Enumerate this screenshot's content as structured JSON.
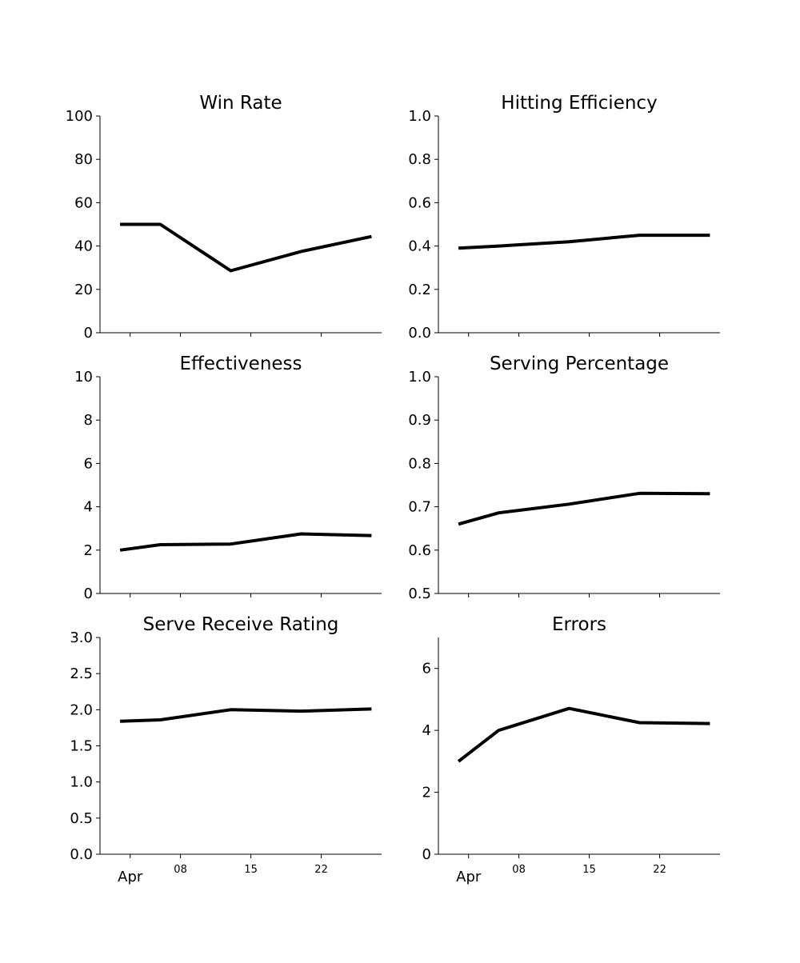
{
  "chart_data": [
    {
      "type": "line",
      "title": "Win Rate",
      "x": [
        "2023-04-02",
        "2023-04-06",
        "2023-04-13",
        "2023-04-20",
        "2023-04-27"
      ],
      "series": [
        {
          "values": [
            50,
            50,
            28.6,
            37.5,
            44.4
          ]
        }
      ],
      "ylim": [
        0,
        100
      ],
      "yticks": [
        "0",
        "20",
        "40",
        "60",
        "80",
        "100"
      ],
      "grid": false
    },
    {
      "type": "line",
      "title": "Hitting Efficiency",
      "x": [
        "2023-04-02",
        "2023-04-06",
        "2023-04-13",
        "2023-04-20",
        "2023-04-27"
      ],
      "series": [
        {
          "values": [
            0.39,
            0.4,
            0.42,
            0.45,
            0.45
          ]
        }
      ],
      "ylim": [
        0,
        1
      ],
      "yticks": [
        "0.0",
        "0.2",
        "0.4",
        "0.6",
        "0.8",
        "1.0"
      ],
      "grid": false
    },
    {
      "type": "line",
      "title": "Effectiveness",
      "x": [
        "2023-04-02",
        "2023-04-06",
        "2023-04-13",
        "2023-04-20",
        "2023-04-27"
      ],
      "series": [
        {
          "values": [
            2.0,
            2.25,
            2.28,
            2.75,
            2.67
          ]
        }
      ],
      "ylim": [
        0,
        10
      ],
      "yticks": [
        "0",
        "2",
        "4",
        "6",
        "8",
        "10"
      ],
      "grid": false
    },
    {
      "type": "line",
      "title": "Serving Percentage",
      "x": [
        "2023-04-02",
        "2023-04-06",
        "2023-04-13",
        "2023-04-20",
        "2023-04-27"
      ],
      "series": [
        {
          "values": [
            0.66,
            0.686,
            0.706,
            0.731,
            0.73
          ]
        }
      ],
      "ylim": [
        0.5,
        1.0
      ],
      "yticks": [
        "0.5",
        "0.6",
        "0.7",
        "0.8",
        "0.9",
        "1.0"
      ],
      "grid": false
    },
    {
      "type": "line",
      "title": "Serve Receive Rating",
      "x": [
        "2023-04-02",
        "2023-04-06",
        "2023-04-13",
        "2023-04-20",
        "2023-04-27"
      ],
      "series": [
        {
          "values": [
            1.84,
            1.86,
            2.0,
            1.98,
            2.01
          ]
        }
      ],
      "ylim": [
        0,
        3
      ],
      "yticks": [
        "0.0",
        "0.5",
        "1.0",
        "1.5",
        "2.0",
        "2.5",
        "3.0"
      ],
      "grid": false
    },
    {
      "type": "line",
      "title": "Errors",
      "x": [
        "2023-04-02",
        "2023-04-06",
        "2023-04-13",
        "2023-04-20",
        "2023-04-27"
      ],
      "series": [
        {
          "values": [
            3.0,
            4.0,
            4.71,
            4.25,
            4.22
          ]
        }
      ],
      "ylim": [
        0,
        7
      ],
      "yticks": [
        "0",
        "2",
        "4",
        "6"
      ],
      "grid": false
    }
  ],
  "x_axis": {
    "tick_dates": [
      "2023-04-03",
      "2023-04-08",
      "2023-04-15",
      "2023-04-22"
    ],
    "tick_labels": [
      "Apr",
      "08",
      "15",
      "22"
    ],
    "xlim": [
      "2023-03-31",
      "2023-04-28"
    ]
  }
}
